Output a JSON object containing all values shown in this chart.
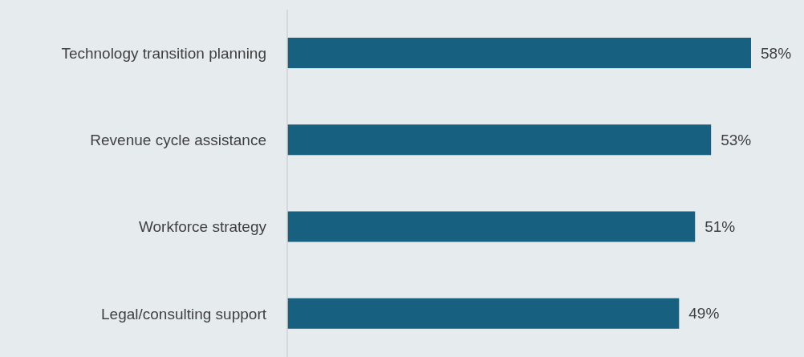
{
  "chart_data": {
    "type": "bar",
    "orientation": "horizontal",
    "categories": [
      "Technology transition planning",
      "Revenue cycle assistance",
      "Workforce strategy",
      "Legal/consulting support"
    ],
    "values": [
      58,
      53,
      51,
      49
    ],
    "value_labels": [
      "58%",
      "53%",
      "51%",
      "49%"
    ],
    "color": "#17607f",
    "grid": false
  }
}
